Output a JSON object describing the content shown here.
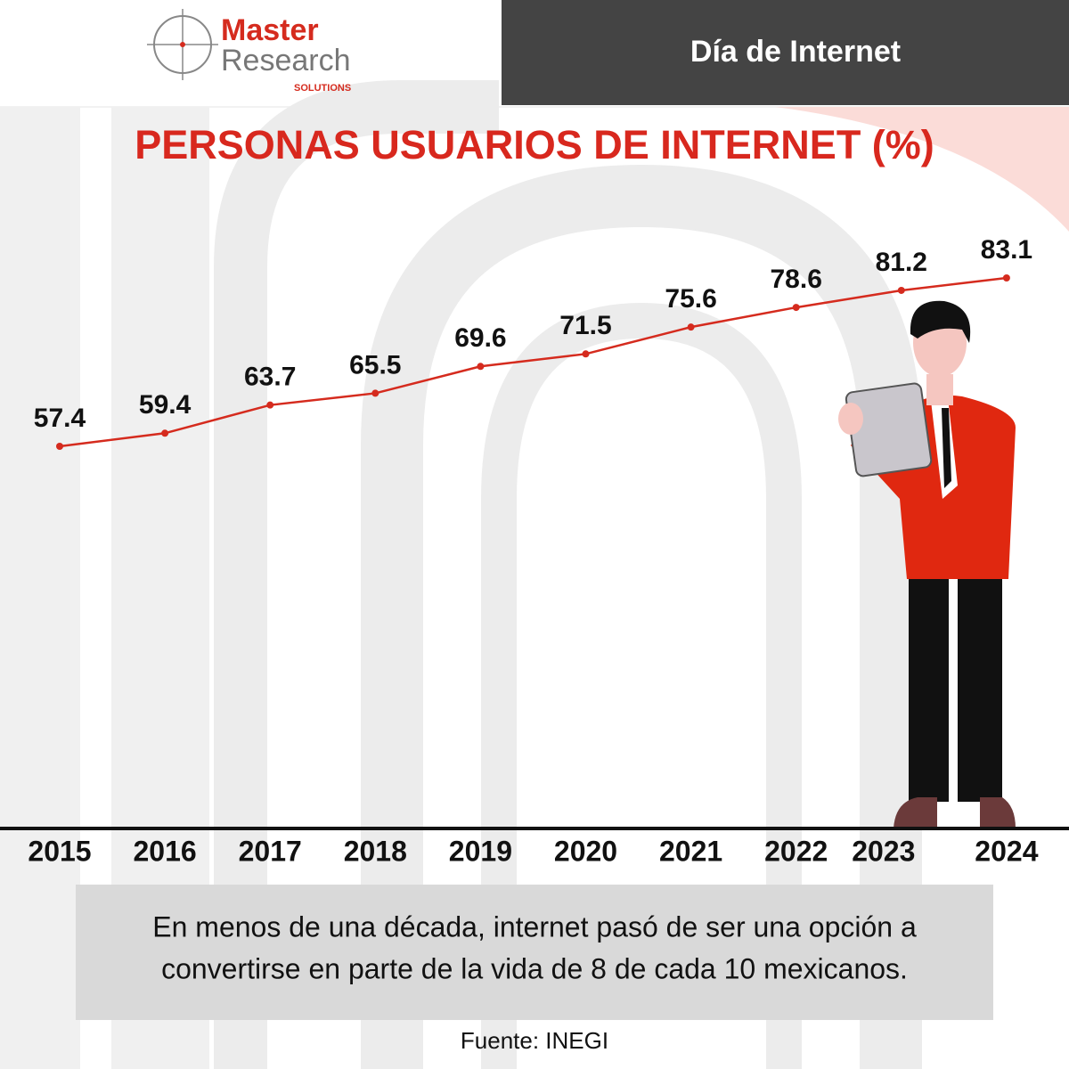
{
  "logo": {
    "line1": "Master",
    "line2": "Research",
    "line3": "SOLUTIONS"
  },
  "header": {
    "title": "Día de Internet"
  },
  "chart_data": {
    "type": "line",
    "title": "PERSONAS USUARIOS DE INTERNET (%)",
    "categories": [
      "2015",
      "2016",
      "2017",
      "2018",
      "2019",
      "2020",
      "2021",
      "2022",
      "2023",
      "2024"
    ],
    "values": [
      57.4,
      59.4,
      63.7,
      65.5,
      69.6,
      71.5,
      75.6,
      78.6,
      81.2,
      83.1
    ],
    "color": "#d52b1e"
  },
  "note": {
    "line1": "En menos de una década, internet pasó de ser una opción a",
    "line2": "convertirse en parte de la vida de 8 de cada 10 mexicanos."
  },
  "source": "Fuente: INEGI"
}
